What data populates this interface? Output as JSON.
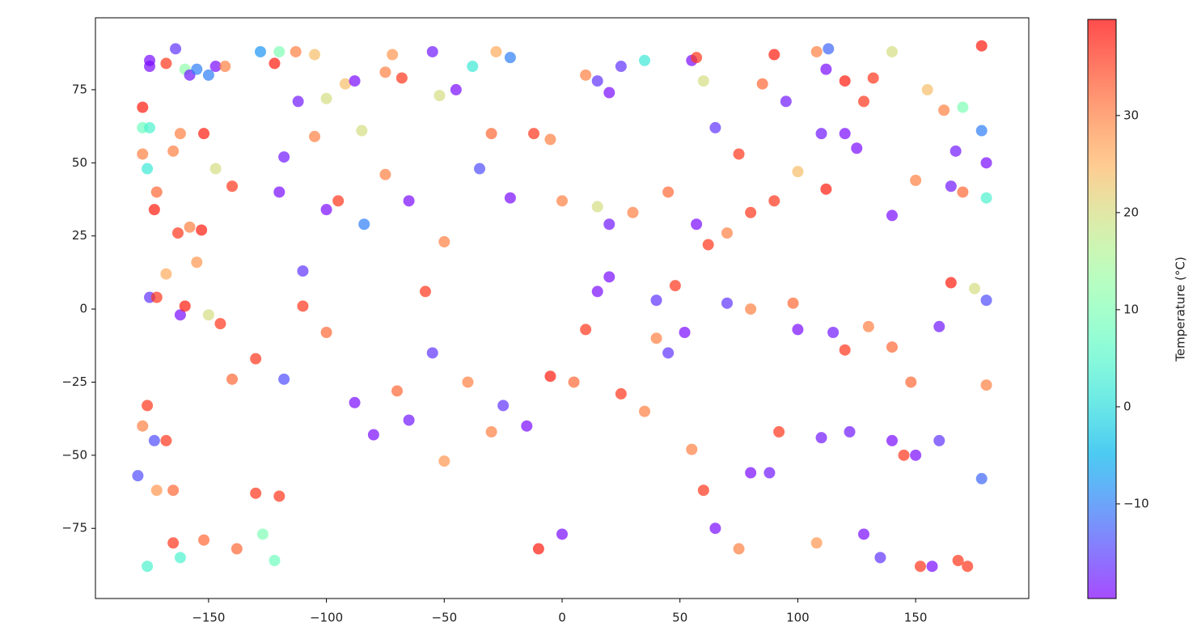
{
  "chart_data": {
    "type": "scatter",
    "x": [
      -178,
      -175,
      -175,
      -168,
      -164,
      -160,
      -158,
      -155,
      -150,
      -147,
      -143,
      -178,
      -176,
      -178,
      -175,
      -165,
      -162,
      -152,
      -147,
      -140,
      -173,
      -172,
      -163,
      -158,
      -155,
      -153,
      -175,
      -172,
      -168,
      -162,
      -160,
      -150,
      -145,
      -140,
      -178,
      -176,
      -173,
      -168,
      -172,
      -165,
      -165,
      -162,
      -176,
      -180,
      -152,
      -138,
      -130,
      -127,
      -120,
      -122,
      -128,
      -120,
      -113,
      -105,
      -122,
      -112,
      -118,
      -105,
      -100,
      -92,
      -88,
      -85,
      -75,
      -72,
      -68,
      -55,
      -52,
      -45,
      -38,
      -28,
      -22,
      -120,
      -110,
      -100,
      -95,
      -84,
      -75,
      -65,
      -58,
      -50,
      -35,
      -30,
      -22,
      -12,
      -5,
      0,
      -130,
      -118,
      -110,
      -100,
      -88,
      -80,
      -70,
      -65,
      -55,
      -50,
      -40,
      -30,
      -25,
      -15,
      -10,
      -5,
      0,
      5,
      10,
      15,
      20,
      25,
      35,
      40,
      45,
      52,
      55,
      60,
      65,
      75,
      80,
      88,
      92,
      100,
      108,
      110,
      122,
      128,
      135,
      140,
      145,
      150,
      152,
      157,
      160,
      168,
      172,
      178,
      10,
      15,
      20,
      25,
      35,
      55,
      57,
      60,
      65,
      75,
      85,
      90,
      95,
      108,
      112,
      113,
      120,
      128,
      132,
      140,
      155,
      162,
      167,
      170,
      178,
      178,
      15,
      20,
      30,
      45,
      57,
      62,
      70,
      80,
      90,
      100,
      110,
      112,
      120,
      125,
      140,
      150,
      165,
      170,
      180,
      180,
      40,
      48,
      70,
      80,
      98,
      115,
      120,
      130,
      140,
      148,
      160,
      165,
      175,
      180,
      180
    ],
    "y": [
      69,
      85,
      83,
      84,
      89,
      82,
      80,
      82,
      80,
      83,
      83,
      53,
      48,
      62,
      62,
      54,
      60,
      60,
      48,
      42,
      34,
      40,
      26,
      28,
      16,
      27,
      4,
      4,
      12,
      -2,
      1,
      -2,
      -5,
      -24,
      -40,
      -33,
      -45,
      -45,
      -62,
      -62,
      -80,
      -85,
      -88,
      -57,
      -79,
      -82,
      -63,
      -77,
      -64,
      -86,
      88,
      88,
      88,
      87,
      84,
      71,
      52,
      59,
      72,
      77,
      78,
      61,
      81,
      87,
      79,
      88,
      73,
      75,
      83,
      88,
      86,
      40,
      13,
      34,
      37,
      29,
      46,
      37,
      6,
      23,
      48,
      60,
      38,
      60,
      58,
      37,
      -17,
      -24,
      1,
      -8,
      -32,
      -43,
      -28,
      -38,
      -15,
      -52,
      -25,
      -42,
      -33,
      -40,
      -82,
      -23,
      -77,
      -25,
      -7,
      6,
      11,
      -29,
      -35,
      -10,
      -15,
      -8,
      -48,
      -62,
      -75,
      -82,
      -56,
      -56,
      -42,
      -7,
      -80,
      -44,
      -42,
      -77,
      -85,
      -45,
      -50,
      -50,
      -88,
      -88,
      -45,
      -86,
      -88,
      -58,
      80,
      78,
      74,
      83,
      85,
      85,
      86,
      78,
      62,
      53,
      77,
      87,
      71,
      88,
      82,
      89,
      78,
      71,
      79,
      88,
      75,
      68,
      54,
      69,
      90,
      61,
      35,
      29,
      33,
      40,
      29,
      22,
      26,
      33,
      37,
      47,
      60,
      41,
      60,
      55,
      32,
      44,
      42,
      40,
      50,
      38,
      3,
      8,
      2,
      0,
      2,
      -8,
      -14,
      -6,
      -13,
      -25,
      -6,
      9,
      7,
      3,
      -26
    ],
    "c": [
      38,
      -19,
      -19,
      36,
      -16,
      12,
      -18,
      -10,
      -10,
      -19,
      30,
      30,
      2,
      8,
      4,
      30,
      30,
      38,
      20,
      36,
      38,
      32,
      36,
      30,
      28,
      38,
      -16,
      36,
      26,
      -19,
      38,
      20,
      36,
      32,
      30,
      36,
      -14,
      36,
      28,
      32,
      36,
      4,
      4,
      -14,
      32,
      32,
      36,
      10,
      36,
      8,
      -8,
      10,
      30,
      24,
      38,
      -18,
      -18,
      30,
      20,
      24,
      -19,
      20,
      30,
      28,
      36,
      -18,
      20,
      -19,
      2,
      26,
      -10,
      -19,
      -16,
      -19,
      36,
      -10,
      30,
      -19,
      36,
      30,
      -14,
      32,
      -19,
      36,
      30,
      30,
      36,
      -14,
      36,
      32,
      -19,
      -19,
      32,
      -18,
      -16,
      28,
      30,
      30,
      -16,
      -19,
      38,
      38,
      -19,
      32,
      36,
      -19,
      -19,
      36,
      30,
      30,
      -16,
      -19,
      30,
      36,
      -19,
      30,
      -19,
      -18,
      36,
      -19,
      28,
      -18,
      -18,
      -19,
      -16,
      -19,
      36,
      -19,
      36,
      -19,
      -16,
      36,
      36,
      -12,
      30,
      -16,
      -19,
      -16,
      2,
      -19,
      36,
      20,
      -16,
      36,
      32,
      38,
      -18,
      30,
      -19,
      -12,
      38,
      36,
      36,
      20,
      24,
      30,
      -18,
      10,
      38,
      -10,
      20,
      -18,
      30,
      32,
      -19,
      36,
      30,
      36,
      36,
      24,
      -18,
      38,
      -19,
      -19,
      -19,
      30,
      -18,
      32,
      -19,
      4,
      -16,
      36,
      -16,
      30,
      32,
      -18,
      36,
      30,
      32,
      32,
      -18,
      38,
      20,
      -14,
      30
    ],
    "xlim": [
      -198,
      198
    ],
    "ylim": [
      -99,
      99.6
    ],
    "xticks": [
      {
        "value": -150,
        "label": "−150"
      },
      {
        "value": -100,
        "label": "−100"
      },
      {
        "value": -50,
        "label": "−50"
      },
      0,
      50,
      100,
      150
    ],
    "yticks": [
      {
        "value": -75,
        "label": "−75"
      },
      {
        "value": -50,
        "label": "−50"
      },
      {
        "value": -25,
        "label": "−25"
      },
      0,
      25,
      50,
      75
    ],
    "colormap": "rainbow",
    "alpha": 0.7,
    "clim": [
      -19.75,
      39.9
    ],
    "cticks": [
      {
        "value": -10,
        "label": "−10"
      },
      0,
      10,
      20,
      30
    ],
    "colorbar_label": "Temperature (°C)"
  }
}
